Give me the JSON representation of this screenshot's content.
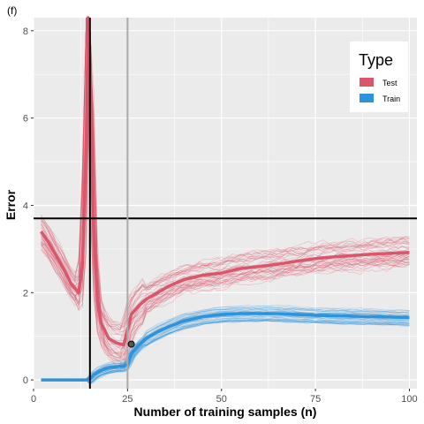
{
  "chart_data": {
    "type": "line",
    "panel_tag": "(f)",
    "xlabel": "Number of training samples (n)",
    "ylabel": "Error",
    "xlim": [
      0,
      102
    ],
    "ylim": [
      -0.2,
      8.3
    ],
    "x_ticks": [
      0,
      25,
      50,
      75,
      100
    ],
    "y_ticks": [
      0,
      2,
      4,
      6,
      8
    ],
    "grid": true,
    "legend": {
      "title": "Type",
      "position": "top-right",
      "entries": [
        {
          "name": "Test",
          "color": "#D9566B"
        },
        {
          "name": "Train",
          "color": "#2E93DB"
        }
      ]
    },
    "reference_lines": {
      "vertical_black_x": 15,
      "vertical_gray_x": 25,
      "horizontal_black_y": 3.7
    },
    "highlight_point": {
      "x": 26,
      "y": 0.82
    },
    "series": [
      {
        "name": "Test",
        "color": "#D9566B",
        "mean": {
          "x": [
            2,
            4,
            6,
            8,
            10,
            12,
            13,
            14,
            14.5,
            15,
            16,
            17,
            18,
            20,
            22,
            24,
            26,
            28,
            30,
            33,
            36,
            40,
            45,
            50,
            55,
            60,
            65,
            70,
            75,
            80,
            85,
            90,
            95,
            100
          ],
          "y": [
            3.4,
            3.15,
            2.85,
            2.55,
            2.2,
            2.0,
            2.6,
            5.5,
            10,
            7.5,
            3.5,
            1.8,
            1.3,
            0.95,
            0.85,
            0.8,
            1.5,
            1.7,
            1.85,
            2.0,
            2.15,
            2.3,
            2.4,
            2.45,
            2.55,
            2.6,
            2.65,
            2.72,
            2.78,
            2.82,
            2.85,
            2.88,
            2.9,
            2.92
          ]
        }
      },
      {
        "name": "Train",
        "color": "#2E93DB",
        "mean": {
          "x": [
            2,
            4,
            6,
            8,
            10,
            12,
            14,
            15,
            16,
            18,
            20,
            22,
            24,
            25,
            26,
            28,
            30,
            33,
            36,
            40,
            45,
            50,
            55,
            60,
            65,
            70,
            75,
            80,
            85,
            90,
            95,
            100
          ],
          "y": [
            0,
            0,
            0,
            0,
            0,
            0,
            0,
            0.02,
            0.12,
            0.22,
            0.28,
            0.3,
            0.32,
            0.35,
            0.6,
            0.8,
            0.95,
            1.1,
            1.22,
            1.35,
            1.45,
            1.5,
            1.52,
            1.52,
            1.52,
            1.5,
            1.48,
            1.47,
            1.46,
            1.45,
            1.44,
            1.43
          ]
        }
      }
    ]
  }
}
